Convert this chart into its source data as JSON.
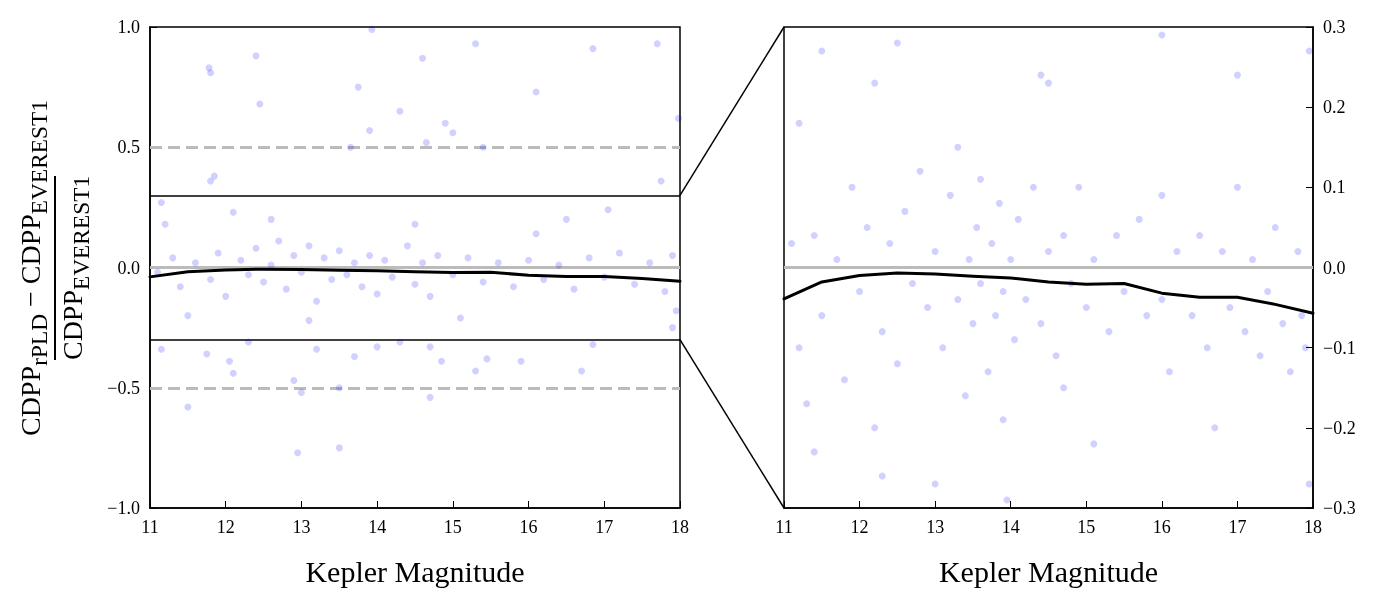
{
  "chart_data": [
    {
      "type": "scatter",
      "xlabel": "Kepler Magnitude",
      "ylabel": "CDPP$_{rPLD}$ − CDPP$_{EVEREST1}$\nCDPP$_{EVEREST1}$",
      "xlim": [
        11,
        18
      ],
      "xticks": [
        11,
        12,
        13,
        14,
        15,
        16,
        17,
        18
      ],
      "ylim": [
        -1,
        1
      ],
      "yticks": [
        {
          "value": -1,
          "label": "−1.0"
        },
        {
          "value": -0.5,
          "label": "−0.5"
        },
        {
          "value": 0,
          "label": "0.0"
        },
        {
          "value": 0.5,
          "label": "0.5"
        },
        {
          "value": 1,
          "label": "1.0"
        }
      ],
      "grid": false,
      "marker": "circle",
      "ref_lines": [
        {
          "axis": "y",
          "value": 0.5,
          "color": "#bbbbbb",
          "line_style": "dashed"
        },
        {
          "axis": "y",
          "value": -0.5,
          "color": "#bbbbbb",
          "line_style": "dashed"
        },
        {
          "axis": "y",
          "value": 0,
          "color": "#bbbbbb",
          "line_style": "solid"
        },
        {
          "axis": "y",
          "value": 0.3,
          "color": "#000000",
          "line_style": "solid"
        },
        {
          "axis": "y",
          "value": -0.3,
          "color": "#000000",
          "line_style": "solid"
        }
      ],
      "series": [
        {
          "color": "#0000ff",
          "x": [
            13.93,
            15.3,
            16.85,
            17.7,
            12.4,
            14.6,
            11.78,
            11.8,
            13.75,
            12.45,
            16.1,
            14.3,
            13.9,
            14.9,
            15,
            14.65,
            13.65,
            15.4,
            17.98,
            11.8,
            11.85,
            17.75,
            11.15,
            12.1,
            11.2,
            16.5,
            11.15,
            11.75,
            12.05,
            12.1,
            12.9,
            13,
            13.5,
            13.7,
            14,
            14.3,
            14.7,
            14.85,
            15.3,
            15.45,
            15.9,
            16.7,
            16.85,
            14.7,
            11.5,
            12.95,
            13.5,
            13.2,
            12.3,
            11.1,
            11.3,
            11.4,
            11.6,
            11.8,
            11.9,
            12,
            12.2,
            12.3,
            12.4,
            12.5,
            12.6,
            12.7,
            12.8,
            12.9,
            13,
            13.1,
            13.2,
            13.3,
            13.4,
            13.5,
            13.6,
            13.7,
            13.8,
            13.9,
            14,
            14.1,
            14.2,
            14.4,
            14.5,
            14.6,
            14.7,
            14.8,
            15,
            15.2,
            15.4,
            15.6,
            15.8,
            16,
            16.2,
            16.4,
            16.6,
            16.8,
            17,
            17.2,
            17.4,
            17.6,
            17.8,
            17.9,
            17.95,
            12.6,
            13.1,
            14.5,
            16.1,
            17.05,
            11.5,
            15.1,
            17.9
          ],
          "values": [
            0.99,
            0.93,
            0.91,
            0.93,
            0.88,
            0.87,
            0.83,
            0.81,
            0.75,
            0.68,
            0.73,
            0.65,
            0.57,
            0.6,
            0.56,
            0.52,
            0.5,
            0.5,
            0.62,
            0.36,
            0.38,
            0.36,
            0.27,
            0.23,
            0.18,
            0.2,
            -0.34,
            -0.36,
            -0.39,
            -0.44,
            -0.47,
            -0.52,
            -0.5,
            -0.37,
            -0.33,
            -0.31,
            -0.33,
            -0.39,
            -0.43,
            -0.38,
            -0.39,
            -0.43,
            -0.32,
            -0.54,
            -0.58,
            -0.77,
            -0.75,
            -0.34,
            -0.31,
            -0.02,
            0.04,
            -0.08,
            0.02,
            -0.05,
            0.06,
            -0.12,
            0.03,
            -0.03,
            0.08,
            -0.06,
            0.01,
            0.11,
            -0.09,
            0.05,
            -0.02,
            0.09,
            -0.14,
            0.04,
            -0.05,
            0.07,
            -0.03,
            0.02,
            -0.08,
            0.05,
            -0.11,
            0.03,
            -0.04,
            0.09,
            -0.07,
            0.02,
            -0.12,
            0.05,
            -0.03,
            0.04,
            -0.06,
            0.02,
            -0.08,
            0.03,
            -0.05,
            0.01,
            -0.09,
            0.04,
            -0.04,
            0.06,
            -0.07,
            0.02,
            -0.1,
            0.05,
            -0.18,
            0.2,
            -0.22,
            0.18,
            0.14,
            0.24,
            -0.2,
            -0.21,
            -0.25
          ]
        },
        {
          "type": "line",
          "color": "#000000",
          "line_style": "solid",
          "marker": "none",
          "x": [
            11,
            11.5,
            12,
            12.5,
            13,
            13.5,
            14,
            14.5,
            15,
            15.5,
            16,
            16.5,
            17,
            17.5,
            18
          ],
          "values": [
            -0.039,
            -0.018,
            -0.01,
            -0.007,
            -0.008,
            -0.011,
            -0.013,
            -0.018,
            -0.021,
            -0.02,
            -0.032,
            -0.037,
            -0.037,
            -0.046,
            -0.057
          ]
        }
      ]
    },
    {
      "type": "scatter",
      "xlabel": "Kepler Magnitude",
      "xlim": [
        11,
        18
      ],
      "xticks": [
        11,
        12,
        13,
        14,
        15,
        16,
        17,
        18
      ],
      "y2lim": [
        -0.3,
        0.3
      ],
      "y2ticks": [
        {
          "value": -0.3,
          "label": "−0.3"
        },
        {
          "value": -0.2,
          "label": "−0.2"
        },
        {
          "value": -0.1,
          "label": "−0.1"
        },
        {
          "value": 0,
          "label": "0.0"
        },
        {
          "value": 0.1,
          "label": "0.1"
        },
        {
          "value": 0.2,
          "label": "0.2"
        },
        {
          "value": 0.3,
          "label": "0.3"
        }
      ],
      "grid": false,
      "marker": "circle",
      "ref_lines": [
        {
          "axis": "y2",
          "value": 0,
          "color": "#bbbbbb",
          "line_style": "solid"
        }
      ],
      "series": [
        {
          "axis": "y2",
          "color": "#0000ff",
          "x": [
            11.1,
            11.2,
            11.2,
            11.3,
            11.4,
            11.5,
            11.7,
            11.8,
            11.9,
            12,
            12.1,
            12.2,
            12.2,
            12.3,
            12.4,
            12.5,
            12.6,
            12.7,
            12.8,
            12.9,
            13,
            13,
            13.1,
            13.2,
            13.3,
            13.3,
            13.4,
            13.45,
            13.5,
            13.55,
            13.6,
            13.6,
            13.7,
            13.75,
            13.8,
            13.85,
            13.9,
            13.9,
            14,
            14.05,
            14.1,
            14.2,
            14.3,
            14.4,
            14.5,
            14.5,
            14.6,
            14.7,
            14.7,
            14.8,
            14.9,
            15,
            15.1,
            15.1,
            15.3,
            15.4,
            15.5,
            15.7,
            15.8,
            16,
            16,
            16.1,
            16.2,
            16.4,
            16.5,
            16.6,
            16.7,
            16.8,
            16.9,
            17,
            17.1,
            17.2,
            17.3,
            17.4,
            17.5,
            17.6,
            17.7,
            17.8,
            17.85,
            17.9,
            17.95,
            17.95,
            11.5,
            12.5,
            14.4,
            16,
            17,
            11.4,
            12.3,
            13.95
          ],
          "values": [
            0.03,
            -0.1,
            0.18,
            -0.17,
            0.04,
            -0.06,
            0.01,
            -0.14,
            0.1,
            -0.03,
            0.05,
            -0.2,
            0.23,
            -0.08,
            0.03,
            -0.12,
            0.07,
            -0.02,
            0.12,
            -0.05,
            0.02,
            -0.27,
            -0.1,
            0.09,
            -0.04,
            0.15,
            -0.16,
            0.01,
            -0.07,
            0.05,
            -0.02,
            0.11,
            -0.13,
            0.03,
            -0.06,
            0.08,
            -0.03,
            -0.19,
            0.01,
            -0.09,
            0.06,
            -0.04,
            0.1,
            -0.07,
            0.02,
            0.23,
            -0.11,
            0.04,
            -0.15,
            -0.02,
            0.1,
            -0.05,
            0.01,
            -0.22,
            -0.08,
            0.04,
            -0.03,
            0.06,
            -0.06,
            0.09,
            -0.04,
            -0.13,
            0.02,
            -0.06,
            0.04,
            -0.1,
            -0.2,
            0.02,
            -0.05,
            0.1,
            -0.08,
            0.01,
            -0.11,
            -0.03,
            0.05,
            -0.07,
            -0.13,
            0.02,
            -0.06,
            -0.1,
            0.27,
            -0.27,
            0.27,
            0.28,
            0.24,
            0.29,
            0.24,
            -0.23,
            -0.26,
            -0.29
          ]
        },
        {
          "type": "line",
          "axis": "y2",
          "color": "#000000",
          "line_style": "solid",
          "marker": "none",
          "x": [
            11,
            11.5,
            12,
            12.5,
            13,
            13.5,
            14,
            14.5,
            15,
            15.5,
            16,
            16.5,
            17,
            17.5,
            18
          ],
          "values": [
            -0.039,
            -0.018,
            -0.01,
            -0.007,
            -0.008,
            -0.011,
            -0.013,
            -0.018,
            -0.021,
            -0.02,
            -0.032,
            -0.037,
            -0.037,
            -0.046,
            -0.057
          ]
        }
      ]
    }
  ]
}
